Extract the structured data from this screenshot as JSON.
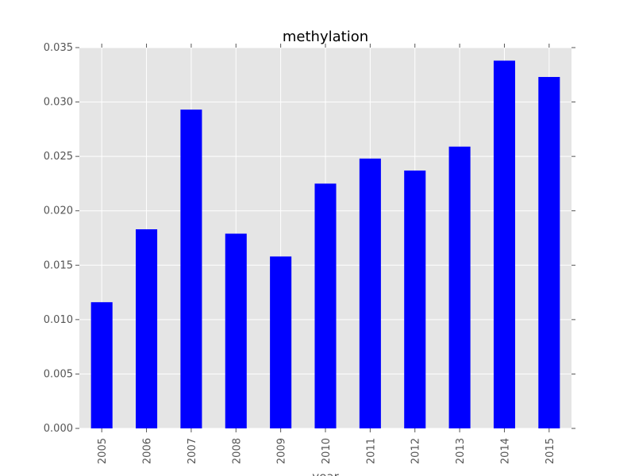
{
  "chart_data": {
    "type": "bar",
    "title": "methylation",
    "xlabel": "year",
    "ylabel": "",
    "categories": [
      "2005",
      "2006",
      "2007",
      "2008",
      "2009",
      "2010",
      "2011",
      "2012",
      "2013",
      "2014",
      "2015"
    ],
    "values": [
      0.0116,
      0.0183,
      0.0293,
      0.0179,
      0.0158,
      0.0225,
      0.0248,
      0.0237,
      0.0259,
      0.0338,
      0.0323
    ],
    "ylim": [
      0,
      0.035
    ],
    "yticks": [
      "0.000",
      "0.005",
      "0.010",
      "0.015",
      "0.020",
      "0.025",
      "0.030",
      "0.035"
    ],
    "grid": true,
    "legend": "none",
    "colors": {
      "bar": "#0000ff",
      "plot_background": "#e5e5e5",
      "grid": "#ffffff"
    }
  }
}
